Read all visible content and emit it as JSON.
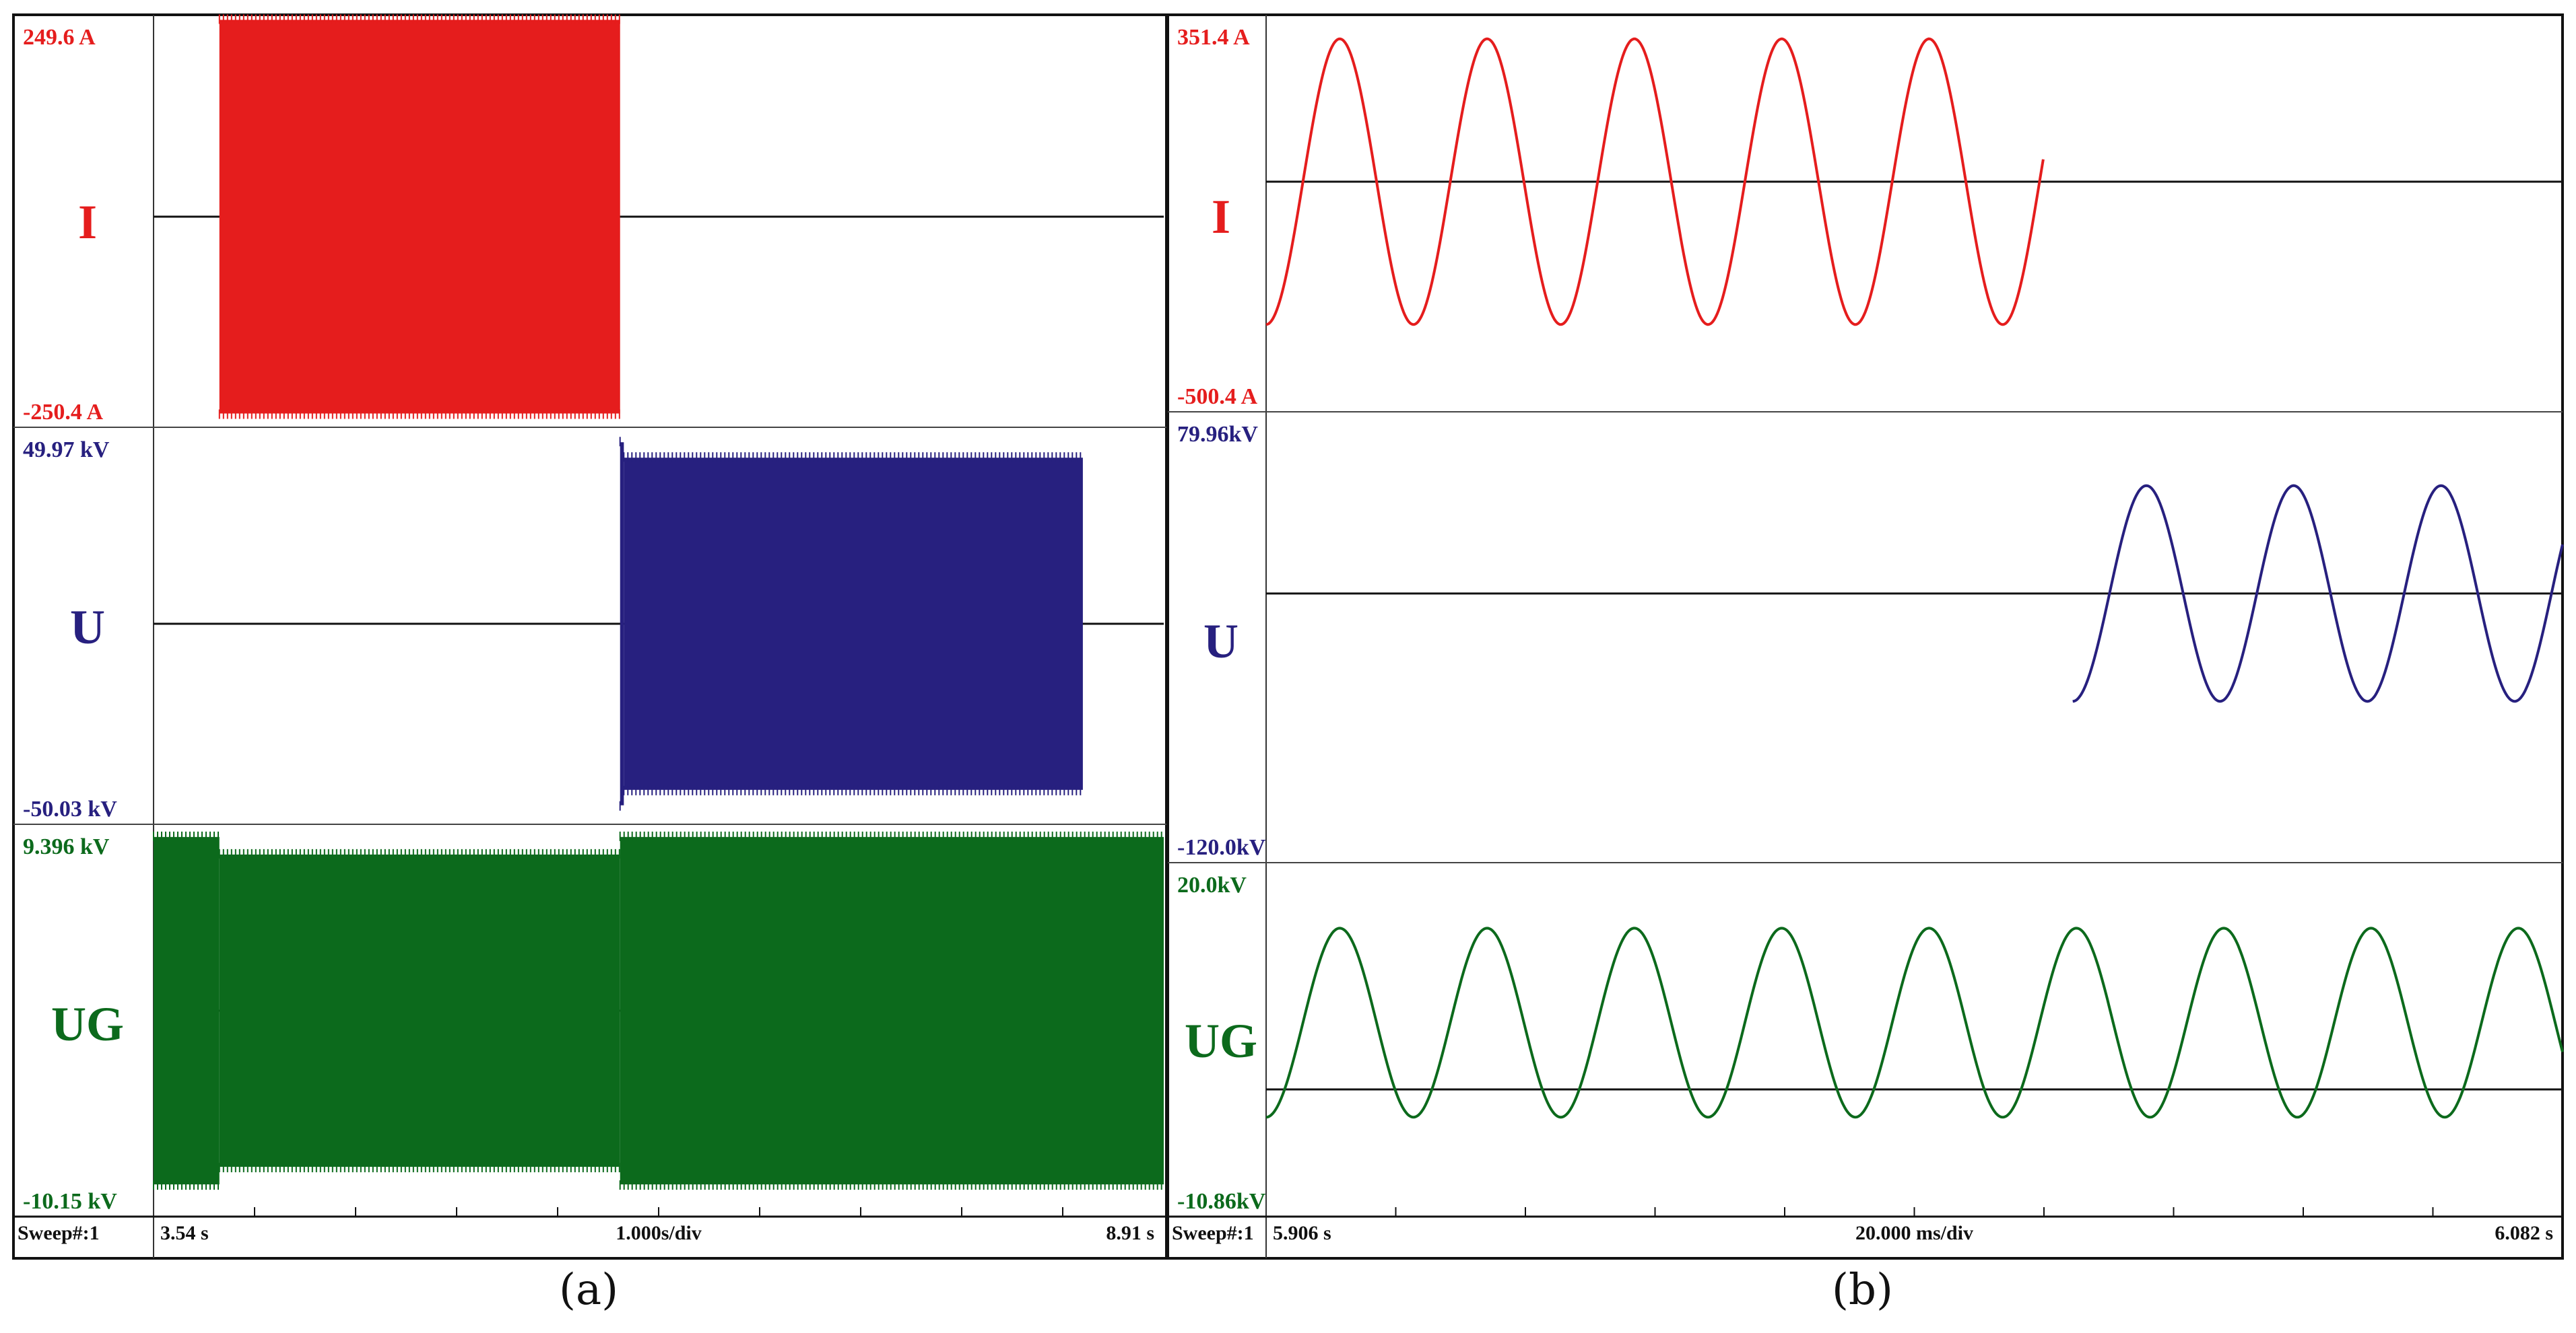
{
  "panels": [
    {
      "caption": "(a)",
      "letter": "a"
    },
    {
      "caption": "(b)",
      "letter": "b"
    }
  ],
  "chart_data": [
    {
      "type": "line",
      "panel": "a",
      "sweep_label": "Sweep#:1",
      "x_start_label": "3.54 s",
      "x_div_label": "1.000s/div",
      "x_end_label": "8.91 s",
      "xlim": [
        3.54,
        8.91
      ],
      "channels": [
        {
          "name": "I",
          "color": "#e51d1d",
          "max_label": "249.6  A",
          "min_label": "-250.4  A",
          "ylim": [
            -250.4,
            249.6
          ],
          "segments": [
            {
              "t0": 3.89,
              "t1": 6.02,
              "period": 0.02,
              "amplitude": 245,
              "offset": 0
            }
          ]
        },
        {
          "name": "U",
          "color": "#27207f",
          "max_label": "49.97 kV",
          "min_label": "-50.03 kV",
          "ylim": [
            -50.03,
            49.97
          ],
          "segments": [
            {
              "t0": 6.02,
              "t1": 6.04,
              "period": 0.02,
              "amplitude": 47,
              "offset": 0
            },
            {
              "t0": 6.04,
              "t1": 8.48,
              "period": 0.02,
              "amplitude": 43,
              "offset": 0
            }
          ]
        },
        {
          "name": "UG",
          "color": "#0c6a1c",
          "max_label": "9.396 kV",
          "min_label": "-10.15 kV",
          "ylim": [
            -10.15,
            9.396
          ],
          "segments": [
            {
              "t0": 3.54,
              "t1": 3.89,
              "period": 0.02,
              "amplitude": 8.9,
              "offset": 0
            },
            {
              "t0": 3.89,
              "t1": 6.02,
              "period": 0.02,
              "amplitude": 8.0,
              "offset": 0
            },
            {
              "t0": 6.02,
              "t1": 8.91,
              "period": 0.02,
              "amplitude": 8.9,
              "offset": 0
            }
          ]
        }
      ]
    },
    {
      "type": "line",
      "panel": "b",
      "sweep_label": "Sweep#:1",
      "x_start_label": "5.906 s",
      "x_div_label": "20.000 ms/div",
      "x_end_label": "6.082 s",
      "xlim": [
        5.906,
        6.082
      ],
      "channels": [
        {
          "name": "I",
          "color": "#e51d1d",
          "max_label": "351.4 A",
          "min_label": "-500.4 A",
          "ylim": [
            -500.4,
            351.4
          ],
          "segments": [
            {
              "t0": 5.906,
              "t1": 6.0115,
              "period": 0.02,
              "amplitude": 315,
              "offset": 0
            }
          ]
        },
        {
          "name": "U",
          "color": "#27207f",
          "max_label": "79.96kV",
          "min_label": "-120.0kV",
          "ylim": [
            -120.0,
            79.96
          ],
          "segments": [
            {
              "t0": 6.0155,
              "t1": 6.082,
              "period": 0.02,
              "amplitude": 49,
              "offset": 0
            }
          ]
        },
        {
          "name": "UG",
          "color": "#0c6a1c",
          "max_label": "20.0kV",
          "min_label": "-10.86kV",
          "ylim": [
            -10.86,
            20.0
          ],
          "segments": [
            {
              "t0": 5.906,
              "t1": 6.082,
              "period": 0.02,
              "amplitude": 8.5,
              "offset": 6.0
            }
          ]
        }
      ]
    }
  ]
}
